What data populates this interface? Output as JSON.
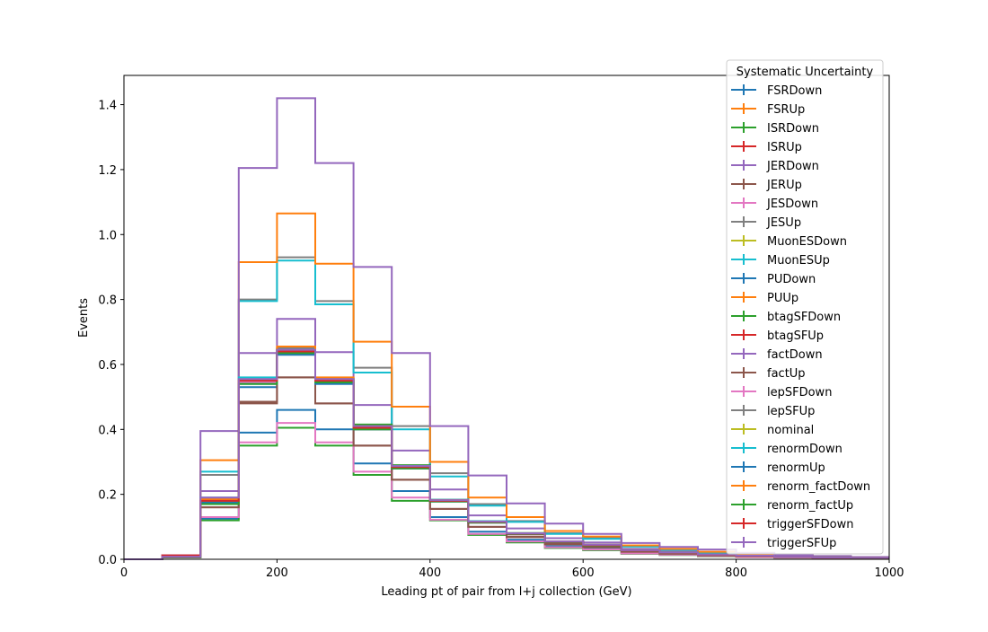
{
  "chart_data": {
    "type": "step",
    "xlabel": "Leading pt of pair from l+j collection (GeV)",
    "ylabel": "Events",
    "xlim": [
      0,
      1000
    ],
    "ylim": [
      0,
      1.49
    ],
    "xticks": [
      0,
      200,
      400,
      600,
      800,
      1000
    ],
    "xtick_labels": [
      "0",
      "200",
      "400",
      "600",
      "800",
      "1000"
    ],
    "yticks": [
      0.0,
      0.2,
      0.4,
      0.6,
      0.8,
      1.0,
      1.2,
      1.4
    ],
    "ytick_labels": [
      "0.0",
      "0.2",
      "0.4",
      "0.6",
      "0.8",
      "1.0",
      "1.2",
      "1.4"
    ],
    "grid": false,
    "legend": {
      "title": "Systematic Uncertainty",
      "placement": "top-right"
    },
    "bin_edges": [
      0,
      50,
      100,
      150,
      200,
      250,
      300,
      350,
      400,
      450,
      500,
      550,
      600,
      650,
      700,
      750,
      800,
      850,
      900,
      950,
      1000
    ],
    "series": [
      {
        "name": "FSRDown",
        "color": "#1f77b4",
        "values": [
          0.0,
          0.006,
          0.125,
          0.39,
          0.46,
          0.4,
          0.295,
          0.21,
          0.13,
          0.085,
          0.06,
          0.04,
          0.035,
          0.02,
          0.015,
          0.01,
          0.008,
          0.006,
          0.005,
          0.004
        ]
      },
      {
        "name": "FSRUp",
        "color": "#ff7f0e",
        "values": [
          0.0,
          0.008,
          0.175,
          0.545,
          0.65,
          0.555,
          0.4,
          0.28,
          0.18,
          0.115,
          0.08,
          0.055,
          0.045,
          0.028,
          0.02,
          0.015,
          0.01,
          0.008,
          0.006,
          0.005
        ]
      },
      {
        "name": "ISRDown",
        "color": "#2ca02c",
        "values": [
          0.0,
          0.006,
          0.12,
          0.35,
          0.405,
          0.35,
          0.26,
          0.18,
          0.12,
          0.075,
          0.052,
          0.035,
          0.028,
          0.017,
          0.013,
          0.009,
          0.007,
          0.005,
          0.004,
          0.003
        ]
      },
      {
        "name": "ISRUp",
        "color": "#d62728",
        "values": [
          0.0,
          0.009,
          0.18,
          0.545,
          0.635,
          0.545,
          0.405,
          0.285,
          0.18,
          0.115,
          0.078,
          0.052,
          0.042,
          0.027,
          0.02,
          0.014,
          0.01,
          0.008,
          0.006,
          0.005
        ]
      },
      {
        "name": "JERDown",
        "color": "#9467bd",
        "values": [
          0.0,
          0.012,
          0.21,
          0.635,
          0.74,
          0.638,
          0.475,
          0.335,
          0.215,
          0.135,
          0.095,
          0.065,
          0.052,
          0.032,
          0.024,
          0.017,
          0.012,
          0.009,
          0.007,
          0.005
        ]
      },
      {
        "name": "JERUp",
        "color": "#8c564b",
        "values": [
          0.0,
          0.007,
          0.16,
          0.485,
          0.56,
          0.48,
          0.35,
          0.245,
          0.155,
          0.1,
          0.07,
          0.047,
          0.038,
          0.024,
          0.018,
          0.013,
          0.009,
          0.007,
          0.005,
          0.004
        ]
      },
      {
        "name": "JESDown",
        "color": "#e377c2",
        "values": [
          0.0,
          0.006,
          0.13,
          0.36,
          0.42,
          0.36,
          0.27,
          0.19,
          0.122,
          0.078,
          0.055,
          0.037,
          0.03,
          0.018,
          0.014,
          0.01,
          0.007,
          0.005,
          0.004,
          0.003
        ]
      },
      {
        "name": "JESUp",
        "color": "#7f7f7f",
        "values": [
          0.0,
          0.01,
          0.26,
          0.8,
          0.93,
          0.795,
          0.59,
          0.41,
          0.265,
          0.17,
          0.118,
          0.08,
          0.065,
          0.04,
          0.03,
          0.021,
          0.015,
          0.011,
          0.008,
          0.006
        ]
      },
      {
        "name": "MuonESDown",
        "color": "#bcbd22",
        "values": [
          0.0,
          0.008,
          0.185,
          0.55,
          0.64,
          0.55,
          0.41,
          0.285,
          0.18,
          0.116,
          0.08,
          0.054,
          0.044,
          0.028,
          0.02,
          0.015,
          0.01,
          0.008,
          0.006,
          0.005
        ]
      },
      {
        "name": "MuonESUp",
        "color": "#17becf",
        "values": [
          0.0,
          0.01,
          0.27,
          0.795,
          0.92,
          0.785,
          0.575,
          0.4,
          0.255,
          0.165,
          0.115,
          0.078,
          0.063,
          0.039,
          0.029,
          0.02,
          0.014,
          0.011,
          0.008,
          0.006
        ]
      },
      {
        "name": "PUDown",
        "color": "#1f77b4",
        "values": [
          0.0,
          0.007,
          0.17,
          0.53,
          0.63,
          0.54,
          0.4,
          0.28,
          0.178,
          0.113,
          0.078,
          0.053,
          0.043,
          0.027,
          0.02,
          0.014,
          0.01,
          0.008,
          0.006,
          0.005
        ]
      },
      {
        "name": "PUUp",
        "color": "#ff7f0e",
        "values": [
          0.0,
          0.01,
          0.305,
          0.915,
          1.065,
          0.91,
          0.67,
          0.47,
          0.3,
          0.19,
          0.13,
          0.087,
          0.07,
          0.043,
          0.032,
          0.023,
          0.016,
          0.012,
          0.009,
          0.007
        ]
      },
      {
        "name": "btagSFDown",
        "color": "#2ca02c",
        "values": [
          0.0,
          0.007,
          0.175,
          0.54,
          0.645,
          0.555,
          0.415,
          0.29,
          0.183,
          0.117,
          0.081,
          0.055,
          0.045,
          0.028,
          0.021,
          0.015,
          0.011,
          0.008,
          0.006,
          0.005
        ]
      },
      {
        "name": "btagSFUp",
        "color": "#d62728",
        "values": [
          0.0,
          0.008,
          0.18,
          0.55,
          0.645,
          0.552,
          0.408,
          0.285,
          0.182,
          0.116,
          0.08,
          0.054,
          0.044,
          0.028,
          0.02,
          0.015,
          0.01,
          0.008,
          0.006,
          0.005
        ]
      },
      {
        "name": "factDown",
        "color": "#9467bd",
        "values": [
          0.0,
          0.012,
          0.395,
          1.205,
          1.42,
          1.22,
          0.9,
          0.635,
          0.41,
          0.258,
          0.172,
          0.11,
          0.078,
          0.05,
          0.038,
          0.03,
          0.02,
          0.013,
          0.01,
          0.007
        ]
      },
      {
        "name": "factUp",
        "color": "#8c564b",
        "values": [
          0.0,
          0.006,
          0.16,
          0.48,
          0.56,
          0.48,
          0.35,
          0.245,
          0.155,
          0.1,
          0.068,
          0.046,
          0.037,
          0.023,
          0.017,
          0.012,
          0.009,
          0.007,
          0.005,
          0.004
        ]
      },
      {
        "name": "lepSFDown",
        "color": "#e377c2",
        "values": [
          0.0,
          0.007,
          0.185,
          0.545,
          0.64,
          0.548,
          0.405,
          0.283,
          0.18,
          0.115,
          0.079,
          0.054,
          0.044,
          0.027,
          0.02,
          0.014,
          0.01,
          0.008,
          0.006,
          0.005
        ]
      },
      {
        "name": "lepSFUp",
        "color": "#7f7f7f",
        "values": [
          0.0,
          0.008,
          0.185,
          0.555,
          0.65,
          0.558,
          0.41,
          0.288,
          0.183,
          0.117,
          0.08,
          0.055,
          0.045,
          0.028,
          0.021,
          0.015,
          0.011,
          0.008,
          0.006,
          0.005
        ]
      },
      {
        "name": "nominal",
        "color": "#bcbd22",
        "values": [
          0.0,
          0.008,
          0.18,
          0.55,
          0.635,
          0.545,
          0.405,
          0.283,
          0.18,
          0.115,
          0.079,
          0.054,
          0.044,
          0.027,
          0.02,
          0.014,
          0.01,
          0.008,
          0.006,
          0.005
        ]
      },
      {
        "name": "renormDown",
        "color": "#17becf",
        "values": [
          0.0,
          0.008,
          0.19,
          0.56,
          0.645,
          0.555,
          0.41,
          0.287,
          0.183,
          0.117,
          0.08,
          0.055,
          0.045,
          0.028,
          0.021,
          0.015,
          0.011,
          0.008,
          0.006,
          0.005
        ]
      },
      {
        "name": "renormUp",
        "color": "#1f77b4",
        "values": [
          0.0,
          0.007,
          0.175,
          0.54,
          0.63,
          0.54,
          0.4,
          0.28,
          0.178,
          0.113,
          0.078,
          0.053,
          0.043,
          0.027,
          0.02,
          0.014,
          0.01,
          0.008,
          0.006,
          0.005
        ]
      },
      {
        "name": "renorm_factDown",
        "color": "#ff7f0e",
        "values": [
          0.0,
          0.008,
          0.185,
          0.55,
          0.655,
          0.56,
          0.41,
          0.286,
          0.182,
          0.116,
          0.08,
          0.055,
          0.045,
          0.028,
          0.021,
          0.015,
          0.011,
          0.008,
          0.006,
          0.005
        ]
      },
      {
        "name": "renorm_factUp",
        "color": "#2ca02c",
        "values": [
          0.0,
          0.007,
          0.17,
          0.54,
          0.635,
          0.545,
          0.4,
          0.28,
          0.178,
          0.113,
          0.078,
          0.053,
          0.043,
          0.027,
          0.02,
          0.014,
          0.01,
          0.008,
          0.006,
          0.005
        ]
      },
      {
        "name": "triggerSFDown",
        "color": "#d62728",
        "values": [
          0.0,
          0.012,
          0.18,
          0.55,
          0.64,
          0.55,
          0.405,
          0.284,
          0.18,
          0.115,
          0.079,
          0.054,
          0.044,
          0.027,
          0.02,
          0.014,
          0.01,
          0.008,
          0.006,
          0.005
        ]
      },
      {
        "name": "triggerSFUp",
        "color": "#9467bd",
        "values": [
          0.0,
          0.008,
          0.19,
          0.555,
          0.645,
          0.555,
          0.41,
          0.287,
          0.182,
          0.116,
          0.08,
          0.055,
          0.045,
          0.028,
          0.021,
          0.015,
          0.011,
          0.008,
          0.006,
          0.005
        ]
      }
    ]
  }
}
